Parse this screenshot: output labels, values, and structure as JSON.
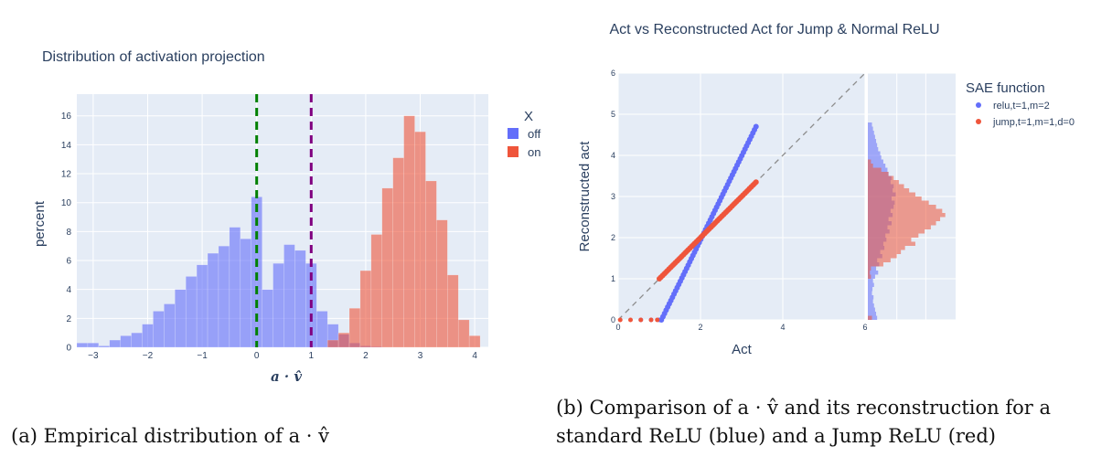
{
  "colors": {
    "off": "#636efa",
    "on": "#ef553b",
    "plot_bg": "#e5ecf6",
    "grid": "#ffffff",
    "text": "#2a3f5f",
    "threshold_green": "#008000",
    "threshold_purple": "#800080",
    "diag": "#8c8c8c"
  },
  "captions": {
    "a": "(a) Empirical distribution of a · v̂",
    "b_line1": "(b) Comparison of a · v̂ and its reconstruction for a",
    "b_line2": "standard ReLU (blue) and a Jump ReLU (red)"
  },
  "chart_data": [
    {
      "type": "bar",
      "title": "Distribution of activation projection",
      "xlabel": "a · v̂",
      "ylabel": "percent",
      "xlim": [
        -3.3,
        4.25
      ],
      "ylim": [
        0,
        17.5
      ],
      "xticks": [
        -3,
        -2,
        -1,
        0,
        1,
        2,
        3,
        4
      ],
      "yticks": [
        0,
        2,
        4,
        6,
        8,
        10,
        12,
        14,
        16
      ],
      "legend": {
        "title": "X",
        "placement": "top-right",
        "entries": [
          "off",
          "on"
        ]
      },
      "bin_start": -3.3,
      "bin_width": 0.2,
      "thresholds": [
        0,
        1
      ],
      "series": [
        {
          "name": "off",
          "values": [
            0.3,
            0.3,
            0.1,
            0.5,
            0.8,
            1.0,
            1.6,
            2.5,
            3.0,
            4.0,
            4.9,
            5.7,
            6.5,
            7.0,
            8.3,
            7.5,
            10.4,
            4.0,
            5.8,
            7.1,
            6.7,
            5.8,
            2.5,
            1.6,
            0.9,
            0.3,
            0.1,
            0.05,
            0,
            0,
            0,
            0,
            0,
            0,
            0,
            0,
            0,
            0
          ]
        },
        {
          "name": "on",
          "values": [
            0,
            0,
            0,
            0,
            0,
            0,
            0,
            0,
            0,
            0,
            0,
            0,
            0,
            0,
            0,
            0,
            0,
            0,
            0,
            0,
            0,
            0,
            0,
            0.5,
            1.0,
            2.7,
            5.3,
            7.8,
            11.0,
            13.1,
            16.0,
            14.9,
            11.5,
            8.8,
            5.0,
            1.9,
            0.8,
            0
          ]
        }
      ]
    },
    {
      "type": "scatter",
      "title": "Act vs Reconstructed Act for Jump & Normal ReLU",
      "xlabel": "Act",
      "ylabel": "Reconstructed act",
      "xlim": [
        0,
        6
      ],
      "ylim": [
        0,
        6
      ],
      "xticks": [
        0,
        2,
        4,
        6
      ],
      "yticks": [
        0,
        1,
        2,
        3,
        4,
        5,
        6
      ],
      "legend": {
        "title": "SAE function",
        "placement": "top-right",
        "entries": [
          "relu,t=1,m=2",
          "jump,t=1,m=1,d=0"
        ]
      },
      "diagonal": [
        [
          0,
          0
        ],
        [
          6,
          6
        ]
      ],
      "series": [
        {
          "name": "relu,t=1,m=2",
          "kind": "line",
          "points": [
            [
              1.05,
              0
            ],
            [
              3.35,
              4.7
            ]
          ]
        },
        {
          "name": "relu,t=1,m=2",
          "kind": "zero-cluster",
          "points": [
            [
              0.55,
              0
            ],
            [
              0.8,
              0
            ],
            [
              1.0,
              0
            ]
          ]
        },
        {
          "name": "jump,t=1,m=1,d=0",
          "kind": "line",
          "points": [
            [
              1.0,
              1.0
            ],
            [
              3.35,
              3.35
            ]
          ]
        },
        {
          "name": "jump,t=1,m=1,d=0",
          "kind": "zero-cluster",
          "points": [
            [
              0.05,
              0
            ],
            [
              0.3,
              0
            ],
            [
              0.55,
              0
            ],
            [
              0.8,
              0
            ],
            [
              0.95,
              0
            ]
          ]
        }
      ],
      "marginal_histogram": {
        "orientation": "horizontal",
        "bin_width": 0.1,
        "relu_counts": [
          0.9,
          0.8,
          0.7,
          0.6,
          0.5,
          0.55,
          0.4,
          0.45,
          0.6,
          0.5,
          0.7,
          1.0,
          0.8,
          1.1,
          0.9,
          1.4,
          1.2,
          1.6,
          1.5,
          1.8,
          1.7,
          2.1,
          1.9,
          2.3,
          2.0,
          2.4,
          2.2,
          2.5,
          2.6,
          2.3,
          2.7,
          2.4,
          2.5,
          2.2,
          2.3,
          2.0,
          1.9,
          1.7,
          1.5,
          1.3,
          1.2,
          1.0,
          0.9,
          0.8,
          0.7,
          0.6,
          0.5,
          0.4
        ],
        "jump_counts": [
          0.4,
          0,
          0,
          0,
          0,
          0,
          0,
          0,
          0,
          0,
          0.3,
          0.2,
          0.3,
          1.5,
          2.2,
          2.8,
          3.2,
          3.6,
          4.6,
          4.2,
          4.9,
          5.5,
          6.1,
          6.6,
          7.0,
          7.5,
          7.2,
          6.6,
          5.9,
          5.2,
          4.6,
          4.0,
          3.5,
          3.0,
          2.5,
          2.0,
          1.3,
          0.5,
          0.3,
          0,
          0,
          0,
          0,
          0,
          0,
          0,
          0,
          0
        ],
        "max": 8.5
      }
    }
  ]
}
